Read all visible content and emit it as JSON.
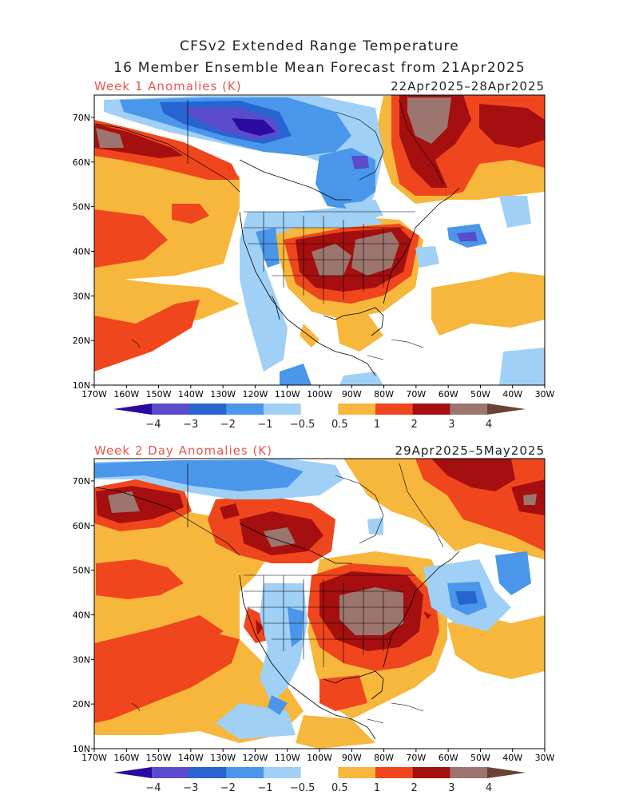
{
  "header": {
    "line1": "CFSv2 Extended Range Temperature",
    "line2": "16 Member Ensemble Mean Forecast from 21Apr2025"
  },
  "panels": [
    {
      "title": "Week 1 Anomalies (K)",
      "dates": "22Apr2025–28Apr2025"
    },
    {
      "title": "Week 2 Day Anomalies (K)",
      "dates": "29Apr2025–5May2025"
    }
  ],
  "lat_labels": [
    "70N",
    "60N",
    "50N",
    "40N",
    "30N",
    "20N",
    "10N"
  ],
  "lon_labels": [
    "170W",
    "160W",
    "150W",
    "140W",
    "130W",
    "120W",
    "110W",
    "100W",
    "90W",
    "80W",
    "70W",
    "60W",
    "50W",
    "40W",
    "30W"
  ],
  "colorbar": {
    "labels": [
      "−4",
      "−3",
      "−2",
      "−1",
      "−0.5",
      "0.5",
      "1",
      "2",
      "3",
      "4"
    ],
    "colors": [
      "#2a0aa0",
      "#5a4ccc",
      "#2864d0",
      "#4a96ea",
      "#a0d0f5",
      "#ffffff",
      "#f6b73c",
      "#f0461e",
      "#a50f0f",
      "#9b756e",
      "#6a4238"
    ]
  }
}
